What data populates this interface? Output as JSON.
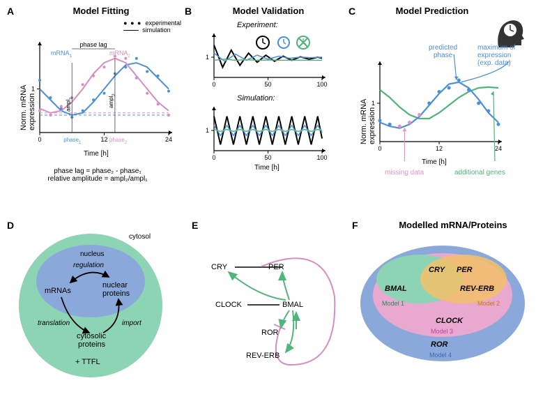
{
  "panels": {
    "a": {
      "label": "A",
      "title": "Model Fitting"
    },
    "b": {
      "label": "B",
      "title": "Model Validation"
    },
    "c": {
      "label": "C",
      "title": "Model Prediction"
    },
    "d": {
      "label": "D"
    },
    "e": {
      "label": "E"
    },
    "f": {
      "label": "F",
      "title": "Modelled mRNA/Proteins"
    }
  },
  "legend_a": {
    "exp": "experimental",
    "sim": "simulation"
  },
  "a_plot": {
    "ylabel": "Norm. mRNA expression",
    "xlabel": "Time [h]",
    "mrna1_label": "mRNA",
    "mrna1_sub": "1",
    "mrna2_label": "mRNA",
    "mrna2_sub": "2",
    "mrna1_color": "#4a8fd9",
    "mrna2_color": "#d98cc2",
    "phase_lag": "phase lag",
    "ampl1": "ampl",
    "ampl1_sub": "1",
    "ampl2": "ampl",
    "ampl2_sub": "2",
    "phase1": "phase",
    "phase1_sub": "1",
    "phase2": "phase",
    "phase2_sub": "2",
    "xticks": [
      "0",
      "12",
      "24"
    ],
    "ytick": "1",
    "note1": "phase lag = phase₂ - phase₁",
    "note2": "relative amplitude = ampl₂/ampl₁",
    "sim_blue": [
      [
        0,
        1.0
      ],
      [
        2,
        0.75
      ],
      [
        4,
        0.5
      ],
      [
        6,
        0.4
      ],
      [
        8,
        0.45
      ],
      [
        10,
        0.7
      ],
      [
        12,
        1.0
      ],
      [
        14,
        1.3
      ],
      [
        16,
        1.55
      ],
      [
        18,
        1.6
      ],
      [
        20,
        1.5
      ],
      [
        22,
        1.25
      ],
      [
        24,
        1.0
      ]
    ],
    "sim_pink": [
      [
        0,
        0.55
      ],
      [
        2,
        0.45
      ],
      [
        4,
        0.5
      ],
      [
        6,
        0.7
      ],
      [
        8,
        1.0
      ],
      [
        10,
        1.35
      ],
      [
        12,
        1.6
      ],
      [
        14,
        1.7
      ],
      [
        16,
        1.6
      ],
      [
        18,
        1.3
      ],
      [
        20,
        1.0
      ],
      [
        22,
        0.7
      ],
      [
        24,
        0.5
      ]
    ],
    "pts_blue": [
      [
        0,
        1.2
      ],
      [
        2,
        0.8
      ],
      [
        4,
        0.55
      ],
      [
        6,
        0.35
      ],
      [
        8,
        0.5
      ],
      [
        10,
        0.75
      ],
      [
        12,
        0.9
      ],
      [
        14,
        1.35
      ],
      [
        16,
        1.5
      ],
      [
        18,
        1.7
      ],
      [
        20,
        1.4
      ],
      [
        22,
        1.3
      ],
      [
        24,
        0.95
      ]
    ],
    "pts_pink": [
      [
        0,
        0.5
      ],
      [
        2,
        0.4
      ],
      [
        4,
        0.6
      ],
      [
        6,
        0.8
      ],
      [
        8,
        1.1
      ],
      [
        10,
        1.3
      ],
      [
        12,
        1.5
      ],
      [
        14,
        1.75
      ],
      [
        16,
        1.7
      ],
      [
        18,
        1.25
      ],
      [
        20,
        0.9
      ],
      [
        22,
        0.65
      ],
      [
        24,
        0.4
      ]
    ]
  },
  "b_plot": {
    "exp_title": "Experiment:",
    "sim_title": "Simulation:",
    "xlabel": "Time [h]",
    "xticks": [
      "0",
      "50",
      "100"
    ],
    "ytick": "1",
    "colors": {
      "black": "#000000",
      "blue": "#4a8fd9",
      "green": "#4fb57a"
    },
    "exp_black": [
      [
        0,
        1.6
      ],
      [
        8,
        0.5
      ],
      [
        16,
        1.35
      ],
      [
        24,
        0.6
      ],
      [
        32,
        1.2
      ],
      [
        40,
        0.75
      ],
      [
        48,
        1.1
      ],
      [
        56,
        0.8
      ],
      [
        64,
        1.05
      ],
      [
        72,
        0.85
      ],
      [
        80,
        1.02
      ],
      [
        88,
        0.9
      ],
      [
        96,
        1.0
      ],
      [
        100,
        0.95
      ]
    ],
    "exp_blue": [
      [
        0,
        1.2
      ],
      [
        10,
        0.8
      ],
      [
        20,
        1.15
      ],
      [
        30,
        0.85
      ],
      [
        40,
        1.1
      ],
      [
        50,
        0.9
      ],
      [
        60,
        1.05
      ],
      [
        70,
        0.95
      ],
      [
        80,
        1.0
      ],
      [
        90,
        0.98
      ],
      [
        100,
        1.0
      ]
    ],
    "exp_green": [
      [
        0,
        0.85
      ],
      [
        10,
        0.9
      ],
      [
        20,
        0.85
      ],
      [
        30,
        0.87
      ],
      [
        40,
        0.85
      ],
      [
        50,
        0.86
      ],
      [
        60,
        0.85
      ],
      [
        70,
        0.85
      ],
      [
        80,
        0.85
      ],
      [
        90,
        0.85
      ],
      [
        100,
        0.85
      ]
    ],
    "sim_black": [
      [
        0,
        1.7
      ],
      [
        6,
        0.3
      ],
      [
        12,
        1.7
      ],
      [
        18,
        0.3
      ],
      [
        24,
        1.7
      ],
      [
        30,
        0.3
      ],
      [
        36,
        1.7
      ],
      [
        42,
        0.3
      ],
      [
        48,
        1.7
      ],
      [
        54,
        0.3
      ],
      [
        60,
        1.7
      ],
      [
        66,
        0.3
      ],
      [
        72,
        1.7
      ],
      [
        78,
        0.3
      ],
      [
        84,
        1.7
      ],
      [
        90,
        0.3
      ],
      [
        96,
        1.7
      ],
      [
        100,
        0.6
      ]
    ],
    "sim_blue": [
      [
        0,
        1.25
      ],
      [
        6,
        0.75
      ],
      [
        12,
        1.25
      ],
      [
        18,
        0.75
      ],
      [
        24,
        1.25
      ],
      [
        30,
        0.75
      ],
      [
        36,
        1.25
      ],
      [
        42,
        0.75
      ],
      [
        48,
        1.25
      ],
      [
        54,
        0.75
      ],
      [
        60,
        1.25
      ],
      [
        66,
        0.75
      ],
      [
        72,
        1.25
      ],
      [
        78,
        0.75
      ],
      [
        84,
        1.25
      ],
      [
        90,
        0.75
      ],
      [
        96,
        1.25
      ],
      [
        100,
        0.9
      ]
    ],
    "sim_green": [
      [
        0,
        1.05
      ],
      [
        6,
        0.95
      ],
      [
        12,
        1.05
      ],
      [
        18,
        0.95
      ],
      [
        24,
        1.05
      ],
      [
        30,
        0.95
      ],
      [
        36,
        1.05
      ],
      [
        42,
        0.95
      ],
      [
        48,
        1.05
      ],
      [
        54,
        0.95
      ],
      [
        60,
        1.05
      ],
      [
        66,
        0.95
      ],
      [
        72,
        1.05
      ],
      [
        78,
        0.95
      ],
      [
        84,
        1.05
      ],
      [
        90,
        0.95
      ],
      [
        96,
        1.05
      ],
      [
        100,
        1.0
      ]
    ]
  },
  "c_plot": {
    "ylabel": "Norm. mRNA expression",
    "xlabel": "Time [h]",
    "xticks": [
      "0",
      "12",
      "24"
    ],
    "ytick": "1",
    "predicted_phase": "predicted\nphase",
    "max_expr": "maximum of\nexpression\n(exp. data)",
    "missing_data": "missing data",
    "additional_genes": "additional genes",
    "colors": {
      "blue": "#4a8fd9",
      "green": "#4fb57a",
      "pink": "#e890c8"
    },
    "line_blue": [
      [
        0,
        0.5
      ],
      [
        2,
        0.4
      ],
      [
        4,
        0.35
      ],
      [
        6,
        0.45
      ],
      [
        8,
        0.65
      ],
      [
        10,
        0.95
      ],
      [
        12,
        1.25
      ],
      [
        14,
        1.5
      ],
      [
        16,
        1.55
      ],
      [
        18,
        1.4
      ],
      [
        20,
        1.1
      ],
      [
        22,
        0.75
      ],
      [
        24,
        0.5
      ]
    ],
    "line_green": [
      [
        0,
        1.35
      ],
      [
        2,
        1.15
      ],
      [
        4,
        0.9
      ],
      [
        6,
        0.7
      ],
      [
        8,
        0.6
      ],
      [
        10,
        0.6
      ],
      [
        12,
        0.75
      ],
      [
        14,
        0.95
      ],
      [
        16,
        1.15
      ],
      [
        18,
        1.3
      ],
      [
        20,
        1.4
      ],
      [
        22,
        1.42
      ],
      [
        24,
        1.4
      ]
    ],
    "pts_blue": [
      [
        0,
        0.55
      ],
      [
        2,
        0.45
      ],
      [
        10,
        1.0
      ],
      [
        12,
        1.3
      ],
      [
        14,
        1.4
      ],
      [
        16,
        1.6
      ],
      [
        18,
        1.35
      ],
      [
        20,
        1.0
      ],
      [
        22,
        0.8
      ],
      [
        24,
        0.45
      ]
    ],
    "missing": [
      [
        4,
        0.4
      ],
      [
        6,
        0.5
      ],
      [
        8,
        0.7
      ]
    ]
  },
  "d_diagram": {
    "outer_color": "#8cd4b3",
    "inner_color": "#8aa8d9",
    "cytosol": "cytosol",
    "nucleus": "nucleus",
    "regulation": "regulation",
    "mrnas": "mRNAs",
    "nuclear_proteins": "nuclear\nproteins",
    "translation": "translation",
    "import": "import",
    "cytosolic_proteins": "cytosolic\nproteins",
    "ttfl": "+ TTFL"
  },
  "e_diagram": {
    "green": "#4fb57a",
    "pink": "#d98cc2",
    "nodes": {
      "cry": "CRY",
      "per": "PER",
      "clock": "CLOCK",
      "bmal": "BMAL",
      "ror": "ROR",
      "reverb": "REV-ERB"
    }
  },
  "f_diagram": {
    "outer": "#8aa8d9",
    "mid": "#e8a8d0",
    "inner_green": "#8cd4b3",
    "inner_orange": "#f2c068",
    "labels": {
      "cry": "CRY",
      "per": "PER",
      "bmal": "BMAL",
      "reverb": "REV-ERB",
      "clock": "CLOCK",
      "ror": "ROR"
    },
    "models": {
      "m1": "Model 1",
      "m2": "Model 2",
      "m3": "Model 3",
      "m4": "Model 4"
    },
    "model_colors": {
      "m1": "#2a8a5a",
      "m2": "#c97a00",
      "m3": "#c040a0",
      "m4": "#3a6ab5"
    }
  }
}
